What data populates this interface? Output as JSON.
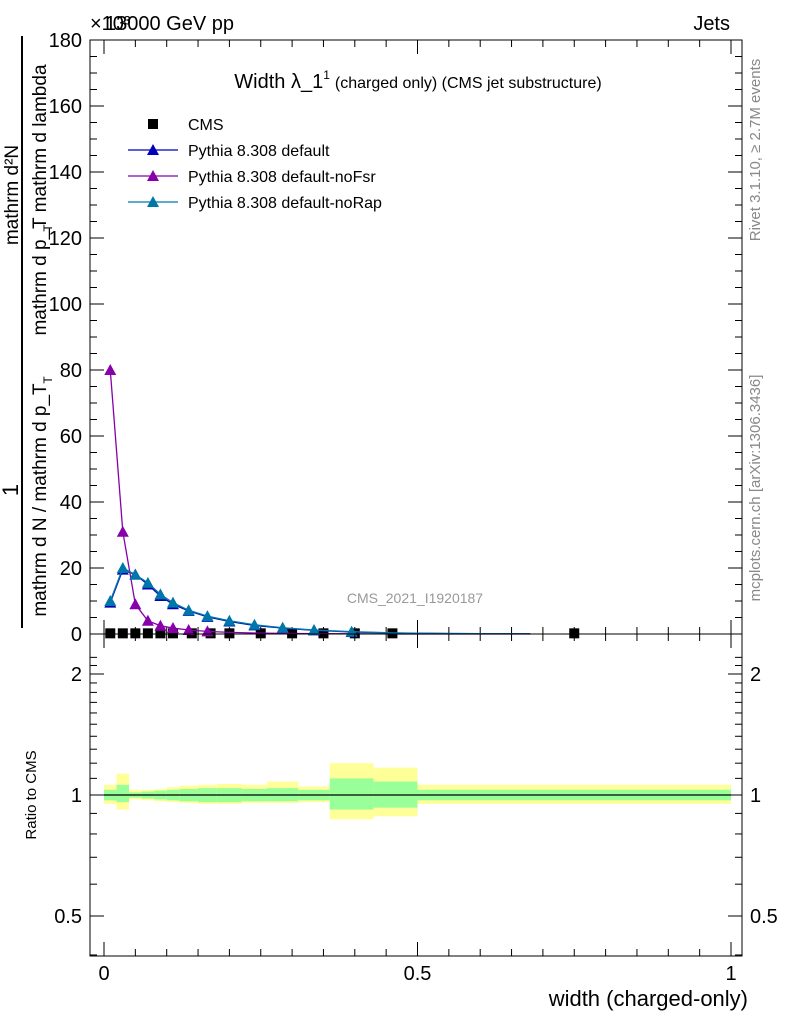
{
  "header": {
    "left": "13000 GeV pp",
    "right": "Jets",
    "exponent": "×10³"
  },
  "side_labels": {
    "rivet": "Rivet 3.1.10, ≥ 2.7M events",
    "mcplots": "mcplots.cern.ch [arXiv:1306.3436]"
  },
  "watermark": "CMS_2021_I1920187",
  "colors": {
    "cms": "#000000",
    "default": "#0000bb",
    "noFsr": "#8800aa",
    "noRap": "#0077aa",
    "band_inner": "#99ff99",
    "band_outer": "#ffff99"
  },
  "chart_data": [
    {
      "type": "line",
      "title_main": "Width λ_1",
      "title_sup": "1",
      "title_rest": "(charged only) (CMS jet substructure)",
      "ylabel_num": "mathrm d²N",
      "ylabel_num_tail": "mathrm d p_T mathrm d lambda",
      "ylabel_num_sub": "T",
      "ylabel_den": "mathrm d N / mathrm d p_T",
      "ylabel_den_sub": "T",
      "ylabel_one": "1",
      "xlim": [
        0,
        1
      ],
      "ylim": [
        0,
        180
      ],
      "y_ticks": [
        "0",
        "20",
        "40",
        "60",
        "80",
        "100",
        "120",
        "140",
        "160",
        "180"
      ],
      "legend": [
        "CMS",
        "Pythia 8.308 default",
        "Pythia 8.308 default-noFsr",
        "Pythia 8.308 default-noRap"
      ],
      "series": [
        {
          "name": "CMS",
          "marker": "square",
          "x": [
            0.01,
            0.03,
            0.05,
            0.07,
            0.09,
            0.11,
            0.14,
            0.17,
            0.2,
            0.25,
            0.3,
            0.35,
            0.4,
            0.46,
            0.75
          ],
          "y": [
            0.2,
            0.2,
            0.2,
            0.2,
            0.2,
            0.2,
            0.2,
            0.2,
            0.2,
            0.2,
            0.2,
            0.2,
            0.2,
            0.2,
            0.2
          ]
        },
        {
          "name": "Pythia 8.308 default",
          "marker": "triangle",
          "x": [
            0.01,
            0.03,
            0.05,
            0.07,
            0.09,
            0.11,
            0.135,
            0.165,
            0.2,
            0.24,
            0.285,
            0.335,
            0.395,
            0.46,
            0.55,
            0.68
          ],
          "y": [
            9.5,
            19.5,
            18,
            15,
            11.5,
            9,
            7,
            5.2,
            3.8,
            2.6,
            1.8,
            1.1,
            0.6,
            0.3,
            0.15,
            0.05
          ]
        },
        {
          "name": "Pythia 8.308 default-noFsr",
          "marker": "triangle",
          "x": [
            0.01,
            0.03,
            0.05,
            0.07,
            0.09,
            0.11,
            0.135,
            0.165,
            0.2,
            0.24,
            0.285,
            0.335,
            0.395,
            0.46,
            0.55,
            0.68
          ],
          "y": [
            80,
            31,
            9,
            4,
            2.5,
            1.8,
            1.2,
            0.8,
            0.5,
            0.3,
            0.2,
            0.1,
            0.05,
            0.02,
            0.01,
            0.0
          ]
        },
        {
          "name": "Pythia 8.308 default-noRap",
          "marker": "triangle",
          "x": [
            0.01,
            0.03,
            0.05,
            0.07,
            0.09,
            0.11,
            0.135,
            0.165,
            0.2,
            0.24,
            0.285,
            0.335,
            0.395,
            0.46,
            0.55,
            0.68
          ],
          "y": [
            10,
            20,
            18,
            15.5,
            12,
            9.5,
            7.2,
            5.4,
            4,
            2.8,
            1.9,
            1.2,
            0.7,
            0.35,
            0.15,
            0.05
          ]
        }
      ]
    },
    {
      "type": "area",
      "ylabel": "Ratio to CMS",
      "xlabel": "width (charged-only)",
      "xlim": [
        0,
        1
      ],
      "ylim": [
        0.4,
        2.3
      ],
      "y_scale": "log",
      "y_ticks": [
        "0.5",
        "1",
        "2"
      ],
      "x_ticks": [
        "0",
        "0.5",
        "1"
      ],
      "bands": [
        {
          "x0": 0.0,
          "x1": 0.02,
          "inner": [
            0.97,
            1.03
          ],
          "outer": [
            0.95,
            1.06
          ]
        },
        {
          "x0": 0.02,
          "x1": 0.04,
          "inner": [
            0.96,
            1.06
          ],
          "outer": [
            0.92,
            1.13
          ]
        },
        {
          "x0": 0.04,
          "x1": 0.06,
          "inner": [
            0.985,
            1.015
          ],
          "outer": [
            0.975,
            1.03
          ]
        },
        {
          "x0": 0.06,
          "x1": 0.08,
          "inner": [
            0.98,
            1.02
          ],
          "outer": [
            0.97,
            1.03
          ]
        },
        {
          "x0": 0.08,
          "x1": 0.1,
          "inner": [
            0.975,
            1.025
          ],
          "outer": [
            0.965,
            1.035
          ]
        },
        {
          "x0": 0.1,
          "x1": 0.12,
          "inner": [
            0.97,
            1.03
          ],
          "outer": [
            0.96,
            1.045
          ]
        },
        {
          "x0": 0.12,
          "x1": 0.15,
          "inner": [
            0.965,
            1.035
          ],
          "outer": [
            0.955,
            1.055
          ]
        },
        {
          "x0": 0.15,
          "x1": 0.18,
          "inner": [
            0.96,
            1.04
          ],
          "outer": [
            0.95,
            1.06
          ]
        },
        {
          "x0": 0.18,
          "x1": 0.22,
          "inner": [
            0.96,
            1.04
          ],
          "outer": [
            0.95,
            1.065
          ]
        },
        {
          "x0": 0.22,
          "x1": 0.26,
          "inner": [
            0.965,
            1.035
          ],
          "outer": [
            0.955,
            1.06
          ]
        },
        {
          "x0": 0.26,
          "x1": 0.31,
          "inner": [
            0.965,
            1.04
          ],
          "outer": [
            0.955,
            1.08
          ]
        },
        {
          "x0": 0.31,
          "x1": 0.36,
          "inner": [
            0.97,
            1.03
          ],
          "outer": [
            0.96,
            1.05
          ]
        },
        {
          "x0": 0.36,
          "x1": 0.43,
          "inner": [
            0.92,
            1.1
          ],
          "outer": [
            0.87,
            1.2
          ]
        },
        {
          "x0": 0.43,
          "x1": 0.5,
          "inner": [
            0.93,
            1.08
          ],
          "outer": [
            0.885,
            1.17
          ]
        },
        {
          "x0": 0.5,
          "x1": 1.0,
          "inner": [
            0.97,
            1.03
          ],
          "outer": [
            0.95,
            1.06
          ]
        }
      ]
    }
  ]
}
